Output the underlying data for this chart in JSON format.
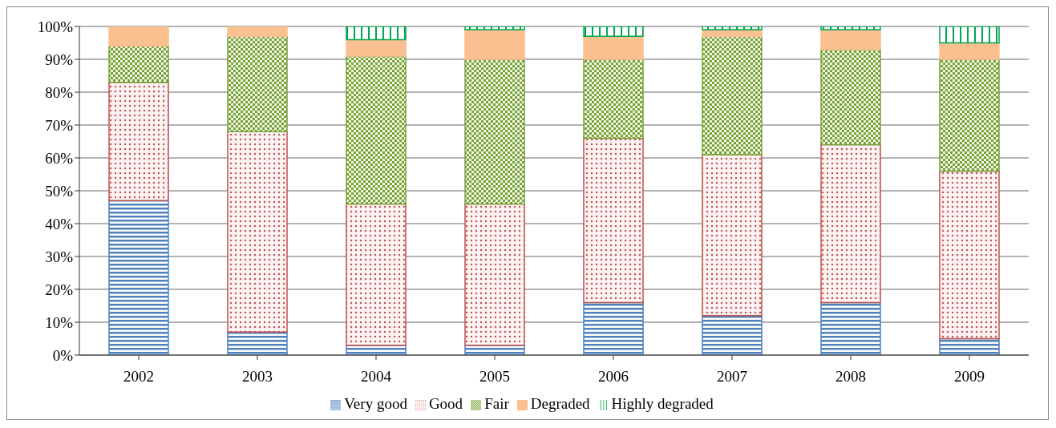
{
  "chart_data": {
    "type": "bar",
    "stacked": true,
    "categories": [
      "2002",
      "2003",
      "2004",
      "2005",
      "2006",
      "2007",
      "2008",
      "2009"
    ],
    "series": [
      {
        "name": "Very good",
        "color": "#4f81bd",
        "values": [
          47,
          7,
          3,
          3,
          16,
          12,
          16,
          5
        ]
      },
      {
        "name": "Good",
        "color": "#c0504d",
        "values": [
          36,
          61,
          43,
          43,
          50,
          49,
          48,
          51
        ]
      },
      {
        "name": "Fair",
        "color": "#77a33a",
        "values": [
          11,
          29,
          45,
          44,
          24,
          36,
          29,
          34
        ]
      },
      {
        "name": "Degraded",
        "color": "#fac090",
        "values": [
          6,
          3,
          5,
          9,
          7,
          2,
          6,
          5
        ]
      },
      {
        "name": "Highly degraded",
        "color": "#00a651",
        "values": [
          0,
          0,
          4,
          1,
          3,
          1,
          1,
          5
        ]
      }
    ],
    "ylim": [
      0,
      100
    ],
    "yticks": [
      {
        "value": 0,
        "label": "0%"
      },
      {
        "value": 10,
        "label": "10%"
      },
      {
        "value": 20,
        "label": "20%"
      },
      {
        "value": 30,
        "label": "30%"
      },
      {
        "value": 40,
        "label": "40%"
      },
      {
        "value": 50,
        "label": "50%"
      },
      {
        "value": 60,
        "label": "60%"
      },
      {
        "value": 70,
        "label": "70%"
      },
      {
        "value": 80,
        "label": "80%"
      },
      {
        "value": 90,
        "label": "90%"
      },
      {
        "value": 100,
        "label": "100%"
      }
    ],
    "grid": "y",
    "legend": "bottom"
  }
}
